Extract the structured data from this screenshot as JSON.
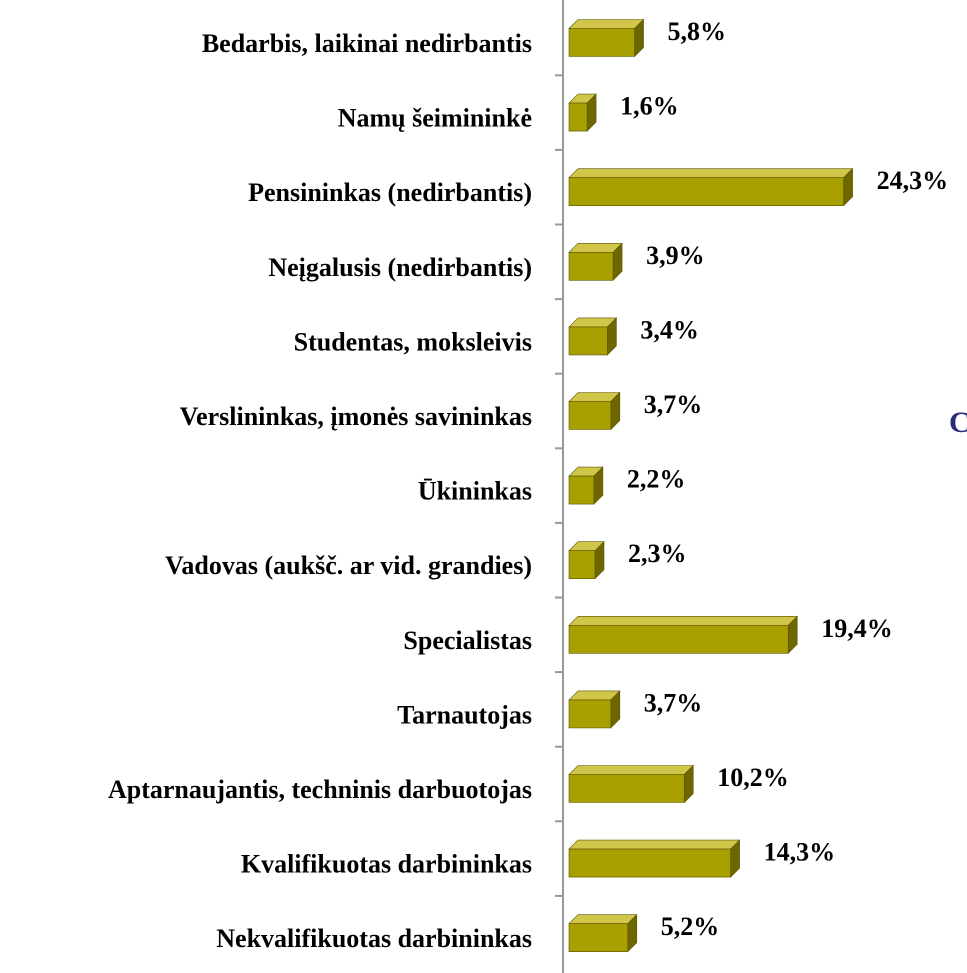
{
  "chart_data": {
    "type": "bar3d-horizontal",
    "categories": [
      "Bedarbis, laikinai nedirbantis",
      "Namų šeimininkė",
      "Pensininkas (nedirbantis)",
      "Neįgalusis (nedirbantis)",
      "Studentas, moksleivis",
      "Verslininkas, įmonės savininkas",
      "Ūkininkas",
      "Vadovas (aukšč. ar vid. grandies)",
      "Specialistas",
      "Tarnautojas",
      "Aptarnaujantis, techninis darbuotojas",
      "Kvalifikuotas darbininkas",
      "Nekvalifikuotas darbininkas"
    ],
    "values": [
      5.8,
      1.6,
      24.3,
      3.9,
      3.4,
      3.7,
      2.2,
      2.3,
      19.4,
      3.7,
      10.2,
      14.3,
      5.2
    ],
    "value_labels": [
      "5,8%",
      "1,6%",
      "24,3%",
      "3,9%",
      "3,4%",
      "3,7%",
      "2,2%",
      "2,3%",
      "19,4%",
      "3,7%",
      "10,2%",
      "14,3%",
      "5,2%"
    ],
    "color": "#a89f00",
    "annotation": "C"
  }
}
